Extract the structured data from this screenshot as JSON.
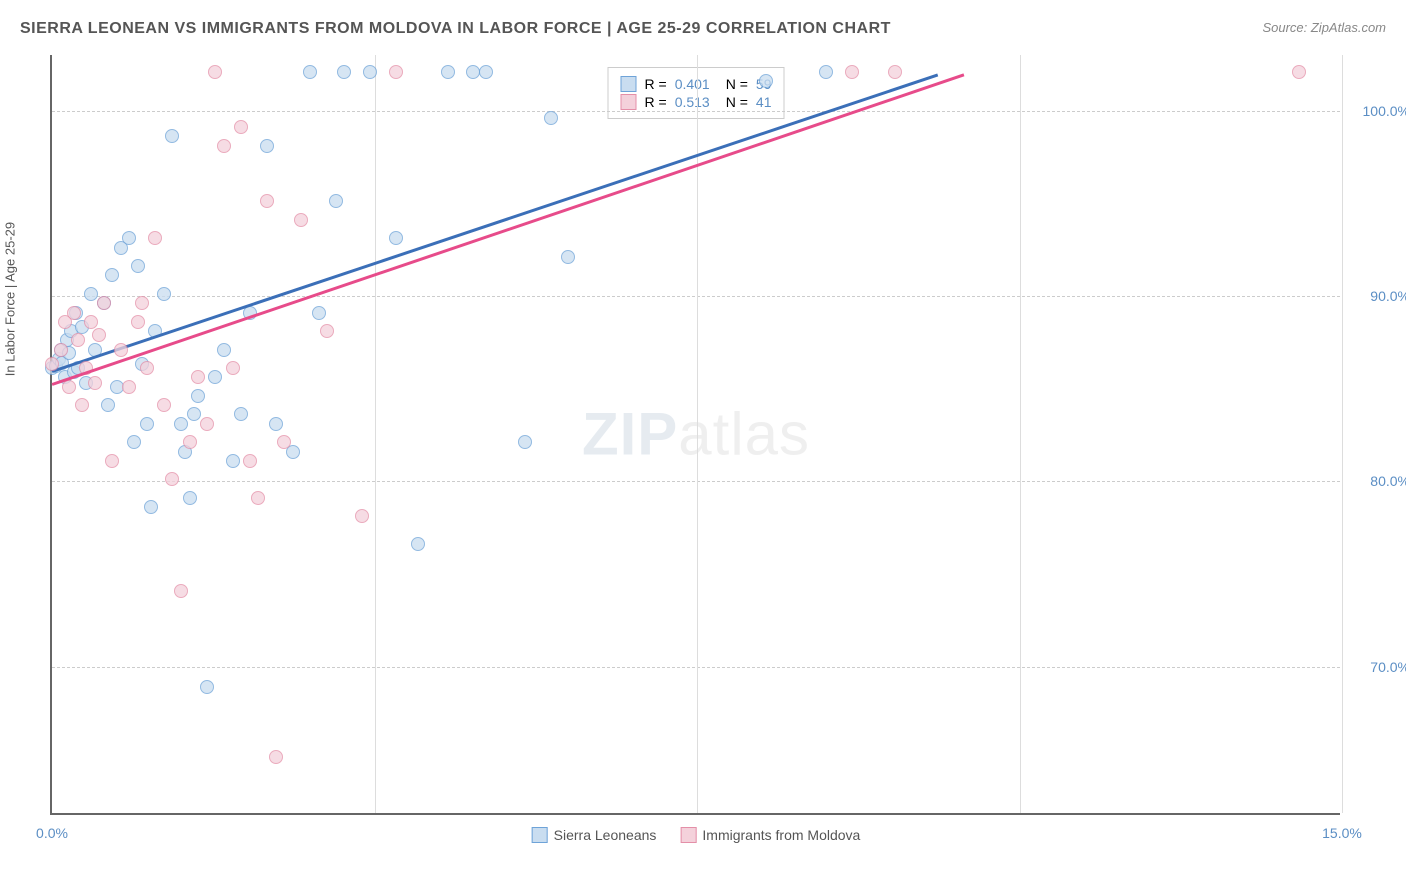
{
  "title": "SIERRA LEONEAN VS IMMIGRANTS FROM MOLDOVA IN LABOR FORCE | AGE 25-29 CORRELATION CHART",
  "source": "Source: ZipAtlas.com",
  "y_axis_label": "In Labor Force | Age 25-29",
  "watermark": {
    "prefix": "ZIP",
    "suffix": "atlas"
  },
  "chart": {
    "type": "scatter",
    "xlim": [
      0,
      15
    ],
    "ylim": [
      62,
      103
    ],
    "x_ticks": [
      {
        "v": 0,
        "label": "0.0%"
      },
      {
        "v": 15,
        "label": "15.0%"
      }
    ],
    "y_ticks": [
      {
        "v": 70,
        "label": "70.0%"
      },
      {
        "v": 80,
        "label": "80.0%"
      },
      {
        "v": 90,
        "label": "90.0%"
      },
      {
        "v": 100,
        "label": "100.0%"
      }
    ],
    "x_grid_verticals": [
      3.75,
      7.5,
      11.25,
      15
    ],
    "background_color": "#ffffff",
    "grid_color": "#cccccc",
    "series": [
      {
        "name": "Sierra Leoneans",
        "fill": "#c9ddf0",
        "stroke": "#6ea3d8",
        "line_color": "#3b6fb8",
        "r_value": "0.401",
        "n_value": "59",
        "trend": {
          "x1": 0,
          "y1": 86,
          "x2": 10.3,
          "y2": 102
        },
        "points": [
          [
            0.0,
            86.0
          ],
          [
            0.05,
            86.1
          ],
          [
            0.08,
            86.5
          ],
          [
            0.1,
            87.0
          ],
          [
            0.12,
            86.3
          ],
          [
            0.15,
            85.5
          ],
          [
            0.18,
            87.5
          ],
          [
            0.2,
            86.8
          ],
          [
            0.22,
            88.0
          ],
          [
            0.25,
            85.8
          ],
          [
            0.28,
            89.0
          ],
          [
            0.3,
            86.0
          ],
          [
            0.35,
            88.2
          ],
          [
            0.4,
            85.2
          ],
          [
            0.45,
            90.0
          ],
          [
            0.5,
            87.0
          ],
          [
            0.6,
            89.5
          ],
          [
            0.65,
            84.0
          ],
          [
            0.7,
            91.0
          ],
          [
            0.75,
            85.0
          ],
          [
            0.8,
            92.5
          ],
          [
            0.9,
            93.0
          ],
          [
            1.0,
            91.5
          ],
          [
            1.05,
            86.2
          ],
          [
            1.1,
            83.0
          ],
          [
            1.2,
            88.0
          ],
          [
            1.3,
            90.0
          ],
          [
            1.4,
            98.5
          ],
          [
            1.5,
            83.0
          ],
          [
            1.55,
            81.5
          ],
          [
            1.6,
            79.0
          ],
          [
            1.65,
            83.5
          ],
          [
            1.7,
            84.5
          ],
          [
            1.8,
            68.8
          ],
          [
            1.9,
            85.5
          ],
          [
            2.0,
            87.0
          ],
          [
            2.1,
            81.0
          ],
          [
            2.2,
            83.5
          ],
          [
            2.3,
            89.0
          ],
          [
            2.5,
            98.0
          ],
          [
            2.6,
            83.0
          ],
          [
            2.8,
            81.5
          ],
          [
            3.0,
            102.0
          ],
          [
            3.1,
            89.0
          ],
          [
            3.3,
            95.0
          ],
          [
            3.4,
            102.0
          ],
          [
            3.7,
            102.0
          ],
          [
            4.0,
            93.0
          ],
          [
            4.25,
            76.5
          ],
          [
            4.6,
            102.0
          ],
          [
            4.9,
            102.0
          ],
          [
            5.05,
            102.0
          ],
          [
            5.5,
            82.0
          ],
          [
            5.8,
            99.5
          ],
          [
            6.0,
            92.0
          ],
          [
            8.3,
            101.5
          ],
          [
            9.0,
            102.0
          ],
          [
            1.15,
            78.5
          ],
          [
            0.95,
            82.0
          ]
        ]
      },
      {
        "name": "Immigrants from Moldova",
        "fill": "#f4d1db",
        "stroke": "#e48fa8",
        "line_color": "#e74b8a",
        "r_value": "0.513",
        "n_value": "41",
        "trend": {
          "x1": 0,
          "y1": 85.3,
          "x2": 10.6,
          "y2": 102
        },
        "points": [
          [
            0.0,
            86.2
          ],
          [
            0.1,
            87.0
          ],
          [
            0.15,
            88.5
          ],
          [
            0.2,
            85.0
          ],
          [
            0.25,
            89.0
          ],
          [
            0.3,
            87.5
          ],
          [
            0.35,
            84.0
          ],
          [
            0.4,
            86.0
          ],
          [
            0.45,
            88.5
          ],
          [
            0.5,
            85.2
          ],
          [
            0.55,
            87.8
          ],
          [
            0.6,
            89.5
          ],
          [
            0.7,
            81.0
          ],
          [
            0.8,
            87.0
          ],
          [
            0.9,
            85.0
          ],
          [
            1.0,
            88.5
          ],
          [
            1.1,
            86.0
          ],
          [
            1.2,
            93.0
          ],
          [
            1.3,
            84.0
          ],
          [
            1.4,
            80.0
          ],
          [
            1.5,
            74.0
          ],
          [
            1.6,
            82.0
          ],
          [
            1.7,
            85.5
          ],
          [
            1.8,
            83.0
          ],
          [
            1.9,
            102.0
          ],
          [
            2.0,
            98.0
          ],
          [
            2.1,
            86.0
          ],
          [
            2.2,
            99.0
          ],
          [
            2.3,
            81.0
          ],
          [
            2.4,
            79.0
          ],
          [
            2.5,
            95.0
          ],
          [
            2.6,
            65.0
          ],
          [
            2.7,
            82.0
          ],
          [
            2.9,
            94.0
          ],
          [
            3.2,
            88.0
          ],
          [
            3.6,
            78.0
          ],
          [
            4.0,
            102.0
          ],
          [
            9.3,
            102.0
          ],
          [
            9.8,
            102.0
          ],
          [
            14.5,
            102.0
          ],
          [
            1.05,
            89.5
          ]
        ]
      }
    ]
  },
  "legend_top": {
    "r_label": "R =",
    "n_label": "N ="
  },
  "legend_bottom": [
    {
      "key": 0
    },
    {
      "key": 1
    }
  ]
}
